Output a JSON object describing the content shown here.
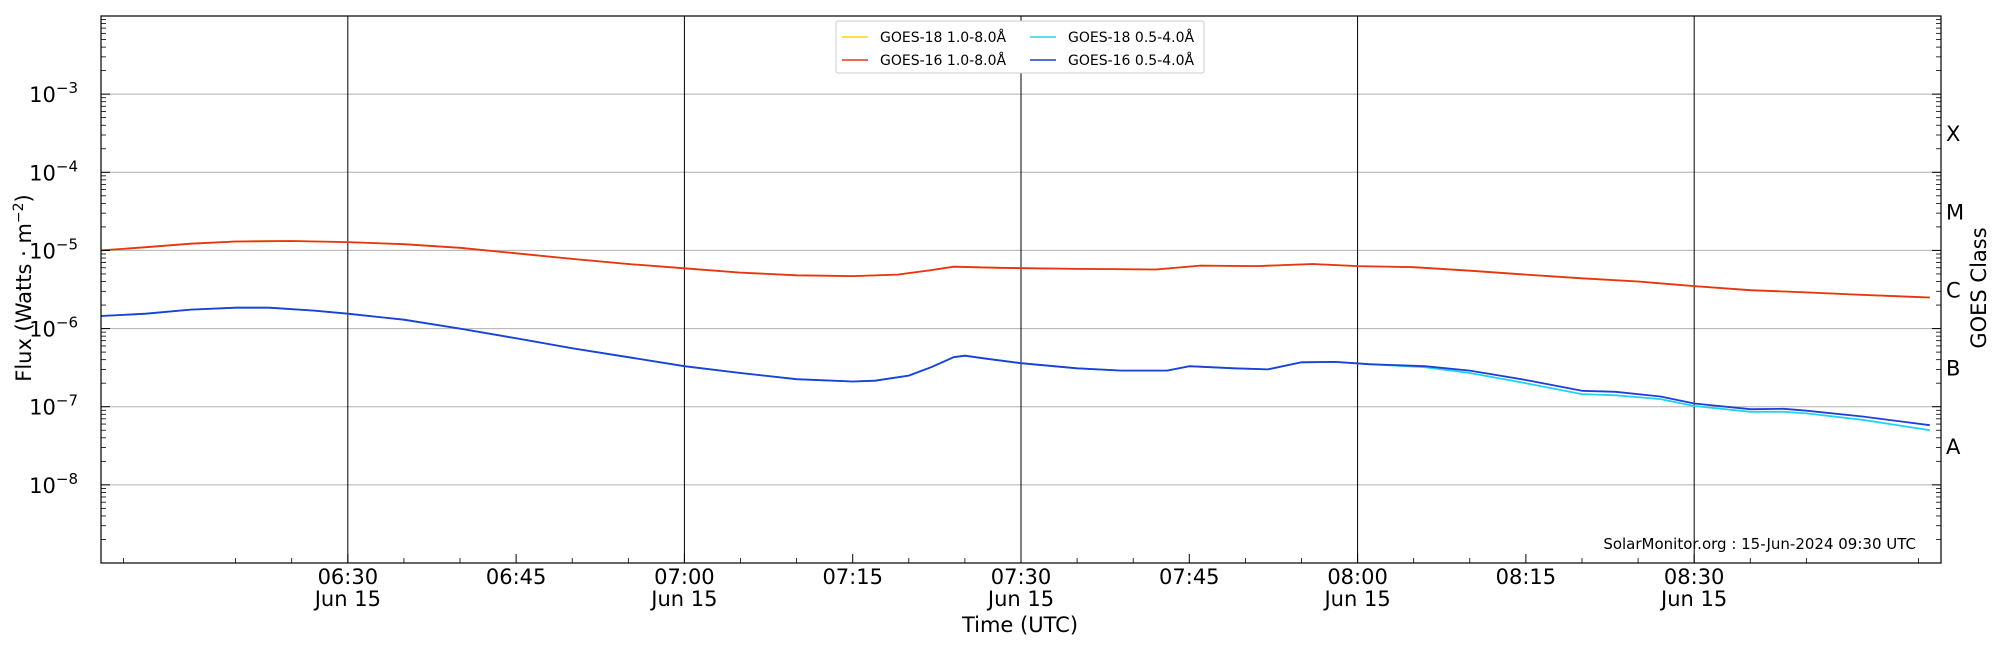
{
  "chart_data": {
    "type": "line",
    "xlabel": "Time (UTC)",
    "ylabel": "Flux (Watts · m",
    "ylabel_exponent": "−2",
    "ylabel_close": ")",
    "right_axis_label": "GOES Class",
    "y_scale": "log",
    "ylim": [
      1e-09,
      0.01
    ],
    "xlim": [
      "2024-06-15 06:08",
      "2024-06-15 08:52"
    ],
    "grid": "horizontal at decades; vertical lines at half hours",
    "legend_placement": "top-center",
    "credit": "SolarMonitor.org : 15-Jun-2024 09:30 UTC",
    "x_ticks": [
      {
        "time": "06:30",
        "label": "06:30",
        "date": "Jun 15"
      },
      {
        "time": "06:45",
        "label": "06:45",
        "date": ""
      },
      {
        "time": "07:00",
        "label": "07:00",
        "date": "Jun 15"
      },
      {
        "time": "07:15",
        "label": "07:15",
        "date": ""
      },
      {
        "time": "07:30",
        "label": "07:30",
        "date": "Jun 15"
      },
      {
        "time": "07:45",
        "label": "07:45",
        "date": ""
      },
      {
        "time": "08:00",
        "label": "08:00",
        "date": "Jun 15"
      },
      {
        "time": "08:15",
        "label": "08:15",
        "date": ""
      },
      {
        "time": "08:30",
        "label": "08:30",
        "date": "Jun 15"
      }
    ],
    "y_ticks": [
      {
        "value": 1e-08,
        "base": "10",
        "exp": "−8"
      },
      {
        "value": 1e-07,
        "base": "10",
        "exp": "−7"
      },
      {
        "value": 1e-06,
        "base": "10",
        "exp": "−6"
      },
      {
        "value": 1e-05,
        "base": "10",
        "exp": "−5"
      },
      {
        "value": 0.0001,
        "base": "10",
        "exp": "−4"
      },
      {
        "value": 0.001,
        "base": "10",
        "exp": "−3"
      }
    ],
    "goes_classes": [
      {
        "label": "A",
        "value": 3.16e-08
      },
      {
        "label": "B",
        "value": 3.16e-07
      },
      {
        "label": "C",
        "value": 3.16e-06
      },
      {
        "label": "M",
        "value": 3.16e-05
      },
      {
        "label": "X",
        "value": 0.000316
      }
    ],
    "series": [
      {
        "name": "GOES-18 1.0-8.0Å",
        "color": "#ffd700",
        "points": [
          [
            "06:08",
            1e-05
          ],
          [
            "06:12",
            1.1e-05
          ],
          [
            "06:16",
            1.22e-05
          ],
          [
            "06:20",
            1.3e-05
          ],
          [
            "06:25",
            1.32e-05
          ],
          [
            "06:30",
            1.28e-05
          ],
          [
            "06:35",
            1.2e-05
          ],
          [
            "06:40",
            1.08e-05
          ],
          [
            "06:45",
            9.2e-06
          ],
          [
            "06:50",
            7.8e-06
          ],
          [
            "06:55",
            6.7e-06
          ],
          [
            "07:00",
            5.9e-06
          ],
          [
            "07:05",
            5.2e-06
          ],
          [
            "07:10",
            4.8e-06
          ],
          [
            "07:15",
            4.7e-06
          ],
          [
            "07:19",
            4.9e-06
          ],
          [
            "07:22",
            5.6e-06
          ],
          [
            "07:24",
            6.2e-06
          ],
          [
            "07:28",
            6e-06
          ],
          [
            "07:35",
            5.8e-06
          ],
          [
            "07:42",
            5.7e-06
          ],
          [
            "07:46",
            6.4e-06
          ],
          [
            "07:51",
            6.3e-06
          ],
          [
            "07:56",
            6.7e-06
          ],
          [
            "08:00",
            6.3e-06
          ],
          [
            "08:05",
            6.1e-06
          ],
          [
            "08:10",
            5.5e-06
          ],
          [
            "08:15",
            4.9e-06
          ],
          [
            "08:20",
            4.4e-06
          ],
          [
            "08:25",
            4e-06
          ],
          [
            "08:30",
            3.5e-06
          ],
          [
            "08:35",
            3.1e-06
          ],
          [
            "08:40",
            2.9e-06
          ],
          [
            "08:45",
            2.7e-06
          ],
          [
            "08:51",
            2.5e-06
          ]
        ]
      },
      {
        "name": "GOES-16 1.0-8.0Å",
        "color": "#e8331b",
        "points": [
          [
            "06:08",
            1e-05
          ],
          [
            "06:12",
            1.1e-05
          ],
          [
            "06:16",
            1.22e-05
          ],
          [
            "06:20",
            1.3e-05
          ],
          [
            "06:25",
            1.32e-05
          ],
          [
            "06:30",
            1.28e-05
          ],
          [
            "06:35",
            1.2e-05
          ],
          [
            "06:40",
            1.08e-05
          ],
          [
            "06:45",
            9.2e-06
          ],
          [
            "06:50",
            7.8e-06
          ],
          [
            "06:55",
            6.7e-06
          ],
          [
            "07:00",
            5.9e-06
          ],
          [
            "07:05",
            5.2e-06
          ],
          [
            "07:10",
            4.8e-06
          ],
          [
            "07:15",
            4.7e-06
          ],
          [
            "07:19",
            4.9e-06
          ],
          [
            "07:22",
            5.6e-06
          ],
          [
            "07:24",
            6.2e-06
          ],
          [
            "07:28",
            6e-06
          ],
          [
            "07:35",
            5.8e-06
          ],
          [
            "07:42",
            5.7e-06
          ],
          [
            "07:46",
            6.4e-06
          ],
          [
            "07:51",
            6.3e-06
          ],
          [
            "07:56",
            6.7e-06
          ],
          [
            "08:00",
            6.3e-06
          ],
          [
            "08:05",
            6.1e-06
          ],
          [
            "08:10",
            5.5e-06
          ],
          [
            "08:15",
            4.9e-06
          ],
          [
            "08:20",
            4.4e-06
          ],
          [
            "08:25",
            4e-06
          ],
          [
            "08:30",
            3.5e-06
          ],
          [
            "08:35",
            3.1e-06
          ],
          [
            "08:40",
            2.9e-06
          ],
          [
            "08:45",
            2.7e-06
          ],
          [
            "08:51",
            2.5e-06
          ]
        ]
      },
      {
        "name": "GOES-18 0.5-4.0Å",
        "color": "#22d3f0",
        "points": [
          [
            "06:08",
            1.45e-06
          ],
          [
            "06:12",
            1.55e-06
          ],
          [
            "06:16",
            1.75e-06
          ],
          [
            "06:20",
            1.85e-06
          ],
          [
            "06:23",
            1.85e-06
          ],
          [
            "06:27",
            1.7e-06
          ],
          [
            "06:30",
            1.55e-06
          ],
          [
            "06:35",
            1.3e-06
          ],
          [
            "06:40",
            1e-06
          ],
          [
            "06:45",
            7.5e-07
          ],
          [
            "06:50",
            5.6e-07
          ],
          [
            "06:55",
            4.3e-07
          ],
          [
            "07:00",
            3.3e-07
          ],
          [
            "07:05",
            2.7e-07
          ],
          [
            "07:10",
            2.25e-07
          ],
          [
            "07:15",
            2.1e-07
          ],
          [
            "07:17",
            2.15e-07
          ],
          [
            "07:20",
            2.5e-07
          ],
          [
            "07:22",
            3.2e-07
          ],
          [
            "07:24",
            4.3e-07
          ],
          [
            "07:25",
            4.5e-07
          ],
          [
            "07:27",
            4.1e-07
          ],
          [
            "07:30",
            3.6e-07
          ],
          [
            "07:35",
            3.1e-07
          ],
          [
            "07:39",
            2.9e-07
          ],
          [
            "07:43",
            2.9e-07
          ],
          [
            "07:45",
            3.3e-07
          ],
          [
            "07:49",
            3.1e-07
          ],
          [
            "07:52",
            3e-07
          ],
          [
            "07:55",
            3.7e-07
          ],
          [
            "07:58",
            3.75e-07
          ],
          [
            "08:01",
            3.5e-07
          ],
          [
            "08:06",
            3.2e-07
          ],
          [
            "08:10",
            2.7e-07
          ],
          [
            "08:15",
            2e-07
          ],
          [
            "08:20",
            1.45e-07
          ],
          [
            "08:23",
            1.4e-07
          ],
          [
            "08:27",
            1.25e-07
          ],
          [
            "08:30",
            1.02e-07
          ],
          [
            "08:35",
            8.6e-08
          ],
          [
            "08:38",
            8.6e-08
          ],
          [
            "08:40",
            8.2e-08
          ],
          [
            "08:45",
            6.8e-08
          ],
          [
            "08:51",
            5e-08
          ]
        ]
      },
      {
        "name": "GOES-16 0.5-4.0Å",
        "color": "#1f3fd6",
        "points": [
          [
            "06:08",
            1.45e-06
          ],
          [
            "06:12",
            1.55e-06
          ],
          [
            "06:16",
            1.75e-06
          ],
          [
            "06:20",
            1.85e-06
          ],
          [
            "06:23",
            1.85e-06
          ],
          [
            "06:27",
            1.7e-06
          ],
          [
            "06:30",
            1.55e-06
          ],
          [
            "06:35",
            1.3e-06
          ],
          [
            "06:40",
            1e-06
          ],
          [
            "06:45",
            7.5e-07
          ],
          [
            "06:50",
            5.6e-07
          ],
          [
            "06:55",
            4.3e-07
          ],
          [
            "07:00",
            3.3e-07
          ],
          [
            "07:05",
            2.7e-07
          ],
          [
            "07:10",
            2.25e-07
          ],
          [
            "07:15",
            2.1e-07
          ],
          [
            "07:17",
            2.15e-07
          ],
          [
            "07:20",
            2.5e-07
          ],
          [
            "07:22",
            3.2e-07
          ],
          [
            "07:24",
            4.3e-07
          ],
          [
            "07:25",
            4.5e-07
          ],
          [
            "07:27",
            4.1e-07
          ],
          [
            "07:30",
            3.6e-07
          ],
          [
            "07:35",
            3.1e-07
          ],
          [
            "07:39",
            2.9e-07
          ],
          [
            "07:43",
            2.9e-07
          ],
          [
            "07:45",
            3.3e-07
          ],
          [
            "07:49",
            3.1e-07
          ],
          [
            "07:52",
            3e-07
          ],
          [
            "07:55",
            3.7e-07
          ],
          [
            "07:58",
            3.75e-07
          ],
          [
            "08:01",
            3.5e-07
          ],
          [
            "08:06",
            3.3e-07
          ],
          [
            "08:10",
            2.9e-07
          ],
          [
            "08:15",
            2.2e-07
          ],
          [
            "08:20",
            1.6e-07
          ],
          [
            "08:23",
            1.55e-07
          ],
          [
            "08:27",
            1.35e-07
          ],
          [
            "08:30",
            1.1e-07
          ],
          [
            "08:35",
            9.3e-08
          ],
          [
            "08:38",
            9.4e-08
          ],
          [
            "08:40",
            8.9e-08
          ],
          [
            "08:45",
            7.5e-08
          ],
          [
            "08:51",
            5.8e-08
          ]
        ]
      }
    ]
  }
}
